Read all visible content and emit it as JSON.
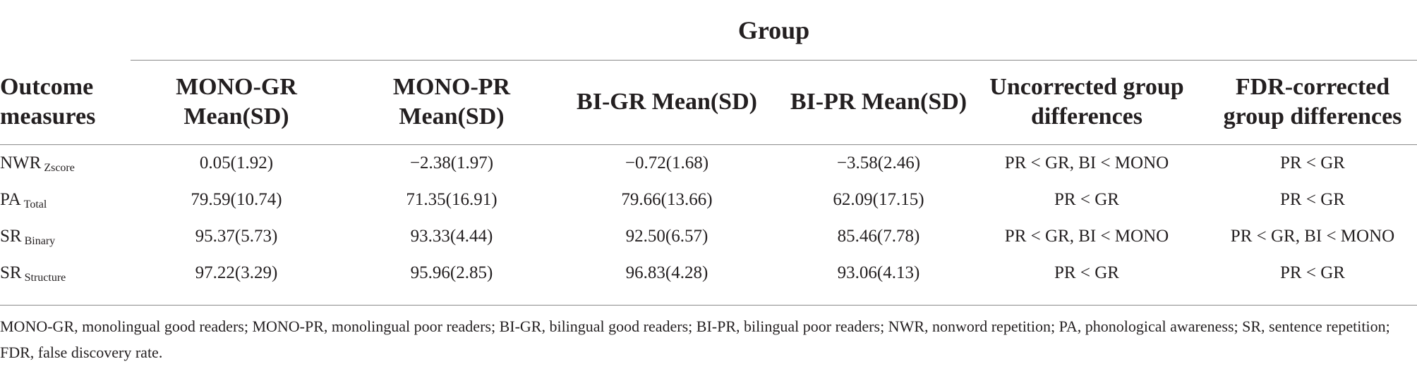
{
  "group_title": "Group",
  "headers": {
    "outcome": "Outcome measures",
    "mono_gr": "MONO-GR Mean(SD)",
    "mono_pr": "MONO-PR Mean(SD)",
    "bi_gr": "BI-GR Mean(SD)",
    "bi_pr": "BI-PR Mean(SD)",
    "uncorrected": "Uncorrected group differences",
    "fdr": "FDR-corrected group differences"
  },
  "rows": [
    {
      "measure": "NWR",
      "sub": "Zscore",
      "mono_gr": "0.05(1.92)",
      "mono_pr": "−2.38(1.97)",
      "bi_gr": "−0.72(1.68)",
      "bi_pr": "−3.58(2.46)",
      "uncorrected": "PR < GR, BI < MONO",
      "fdr": "PR < GR"
    },
    {
      "measure": "PA",
      "sub": "Total",
      "mono_gr": "79.59(10.74)",
      "mono_pr": "71.35(16.91)",
      "bi_gr": "79.66(13.66)",
      "bi_pr": "62.09(17.15)",
      "uncorrected": "PR < GR",
      "fdr": "PR < GR"
    },
    {
      "measure": "SR",
      "sub": "Binary",
      "mono_gr": "95.37(5.73)",
      "mono_pr": "93.33(4.44)",
      "bi_gr": "92.50(6.57)",
      "bi_pr": "85.46(7.78)",
      "uncorrected": "PR < GR, BI < MONO",
      "fdr": "PR < GR, BI < MONO"
    },
    {
      "measure": "SR",
      "sub": "Structure",
      "mono_gr": "97.22(3.29)",
      "mono_pr": "95.96(2.85)",
      "bi_gr": "96.83(4.28)",
      "bi_pr": "93.06(4.13)",
      "uncorrected": "PR < GR",
      "fdr": "PR < GR"
    }
  ],
  "footnote": "MONO-GR, monolingual good readers; MONO-PR, monolingual poor readers; BI-GR, bilingual good readers; BI-PR, bilingual poor readers; NWR, nonword repetition; PA, phonological awareness; SR, sentence repetition; FDR, false discovery rate."
}
